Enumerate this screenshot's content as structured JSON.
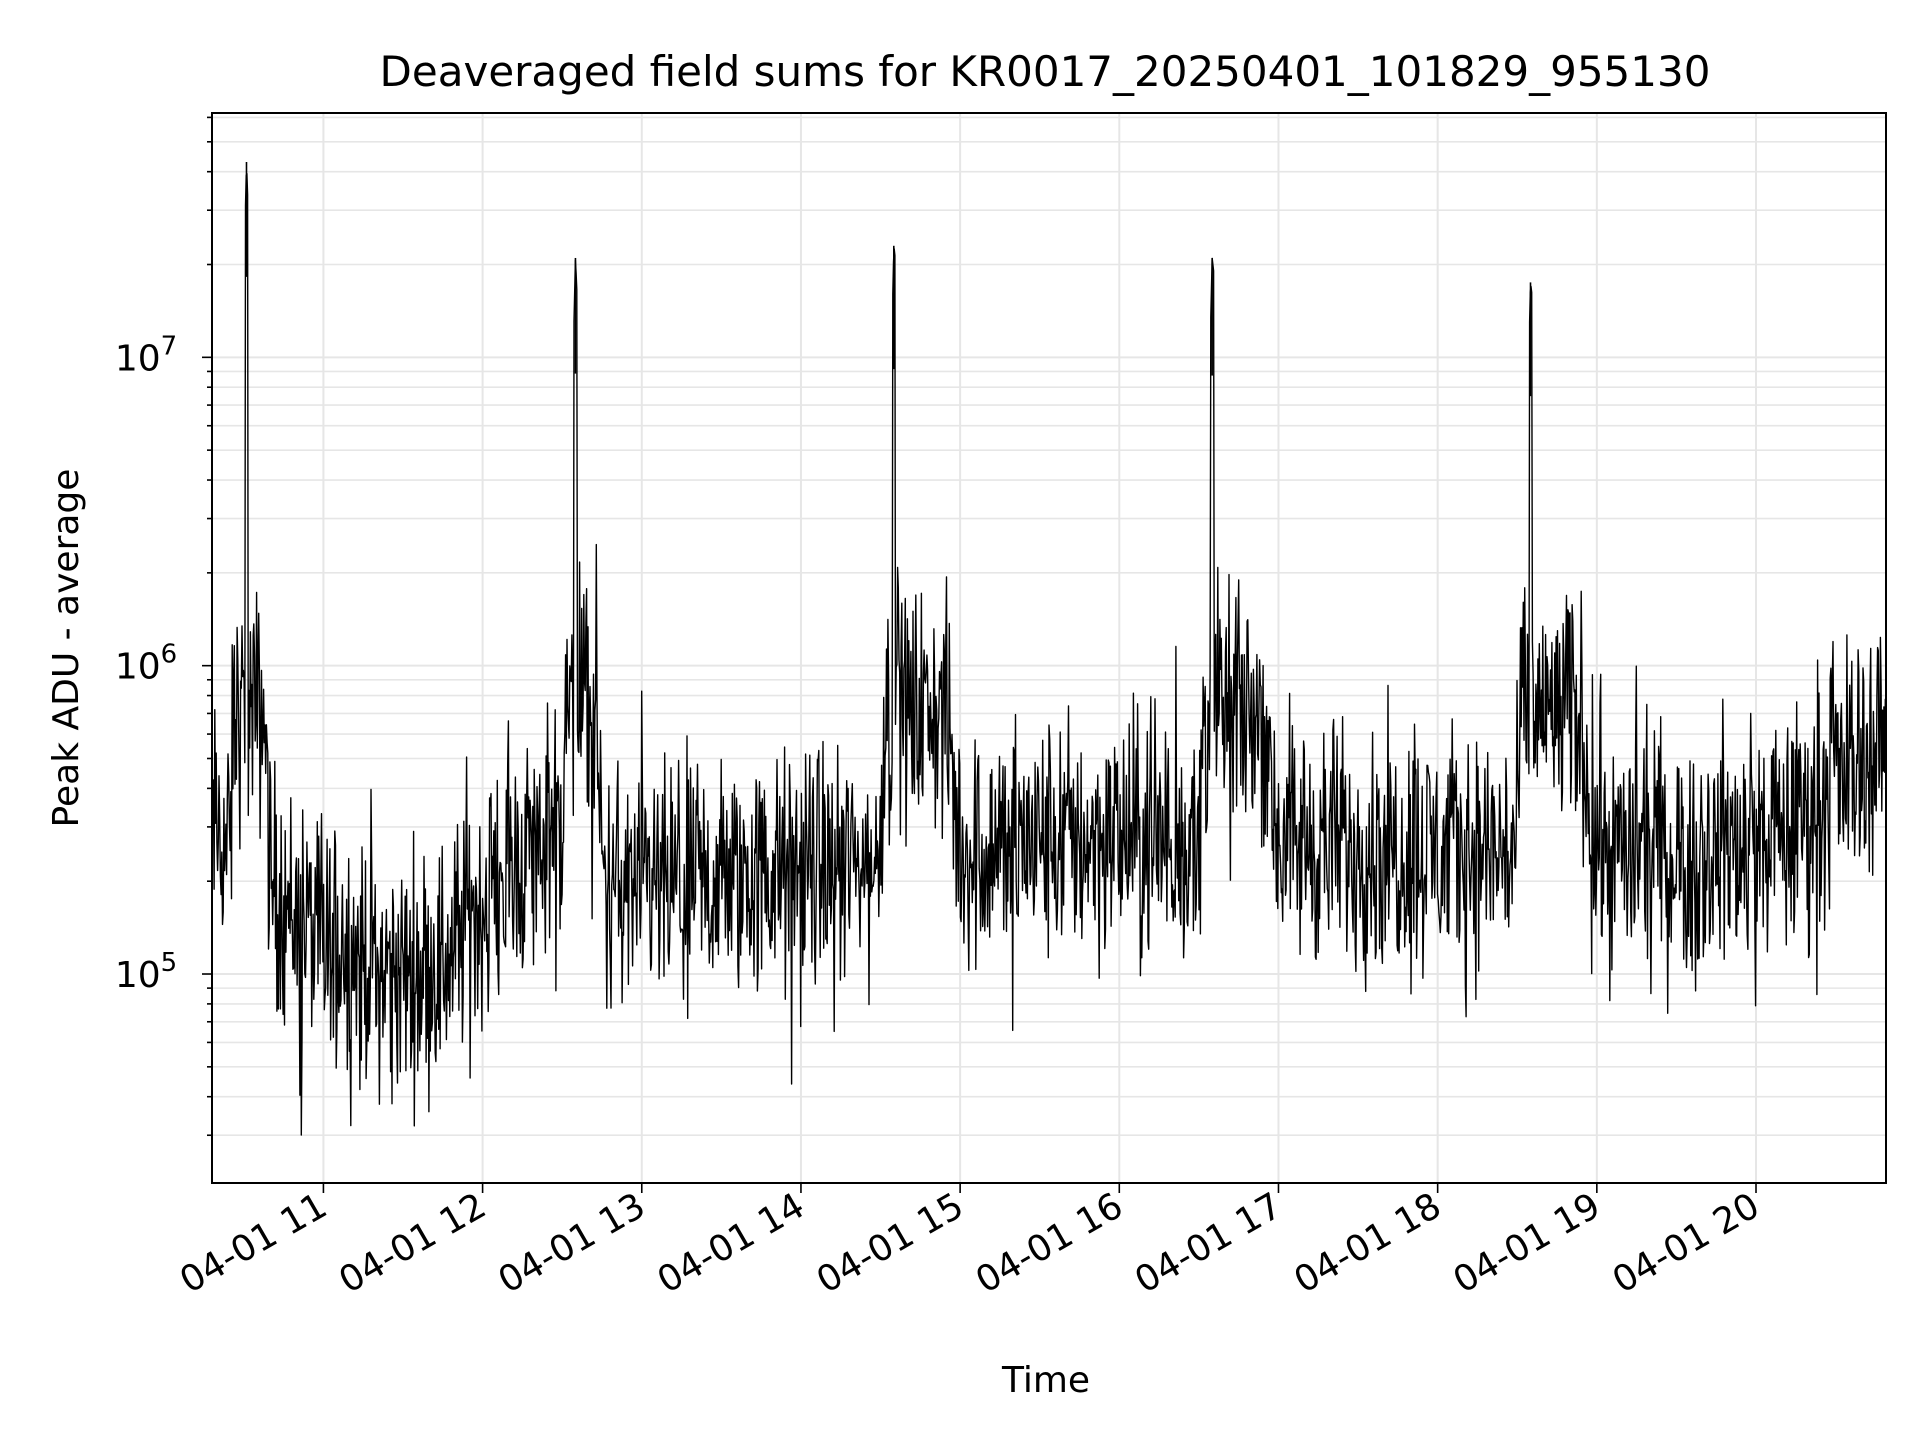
{
  "chart_data": {
    "type": "line",
    "title": "Deaveraged field sums for KR0017_20250401_101829_955130",
    "xlabel": "Time",
    "ylabel": "Peak ADU - average",
    "yscale": "log",
    "grid": true,
    "xlim": [
      "2025-04-01 10:18",
      "2025-04-01 20:49"
    ],
    "ylim": [
      21000,
      62000000
    ],
    "x_ticks": [
      {
        "value": "2025-04-01 11:00",
        "label": "04-01 11"
      },
      {
        "value": "2025-04-01 12:00",
        "label": "04-01 12"
      },
      {
        "value": "2025-04-01 13:00",
        "label": "04-01 13"
      },
      {
        "value": "2025-04-01 14:00",
        "label": "04-01 14"
      },
      {
        "value": "2025-04-01 15:00",
        "label": "04-01 15"
      },
      {
        "value": "2025-04-01 16:00",
        "label": "04-01 16"
      },
      {
        "value": "2025-04-01 17:00",
        "label": "04-01 17"
      },
      {
        "value": "2025-04-01 18:00",
        "label": "04-01 18"
      },
      {
        "value": "2025-04-01 19:00",
        "label": "04-01 19"
      },
      {
        "value": "2025-04-01 20:00",
        "label": "04-01 20"
      }
    ],
    "y_ticks": [
      {
        "value": 100000,
        "base": "10",
        "exp": "5"
      },
      {
        "value": 1000000,
        "base": "10",
        "exp": "6"
      },
      {
        "value": 10000000,
        "base": "10",
        "exp": "7"
      }
    ],
    "line_color": "#000000",
    "grid_color": "#e6e6e6",
    "series": [
      {
        "x": [
          "2025-04-01 10:18",
          "2025-04-01 10:25",
          "2025-04-01 10:31",
          "2025-04-01 10:40",
          "2025-04-01 10:50",
          "2025-04-01 11:00",
          "2025-04-01 11:15",
          "2025-04-01 11:30",
          "2025-04-01 11:45",
          "2025-04-01 12:00",
          "2025-04-01 12:15",
          "2025-04-01 12:30",
          "2025-04-01 12:35",
          "2025-04-01 12:45",
          "2025-04-01 13:00",
          "2025-04-01 13:30",
          "2025-04-01 14:00",
          "2025-04-01 14:30",
          "2025-04-01 14:35",
          "2025-04-01 15:00",
          "2025-04-01 15:30",
          "2025-04-01 16:00",
          "2025-04-01 16:30",
          "2025-04-01 16:35",
          "2025-04-01 17:00",
          "2025-04-01 17:30",
          "2025-04-01 18:00",
          "2025-04-01 18:30",
          "2025-04-01 18:35",
          "2025-04-01 19:00",
          "2025-04-01 19:30",
          "2025-04-01 20:00",
          "2025-04-01 20:15",
          "2025-04-01 20:30",
          "2025-04-01 20:45",
          "2025-04-01 20:49"
        ],
        "y": [
          300000,
          250000,
          43000000,
          200000,
          150000,
          130000,
          110000,
          100000,
          110000,
          170000,
          240000,
          280000,
          21000000,
          200000,
          180000,
          200000,
          210000,
          230000,
          23000000,
          250000,
          270000,
          280000,
          260000,
          21000000,
          270000,
          260000,
          250000,
          250000,
          17500000,
          250000,
          250000,
          260000,
          300000,
          450000,
          550000,
          600000
        ]
      }
    ]
  }
}
